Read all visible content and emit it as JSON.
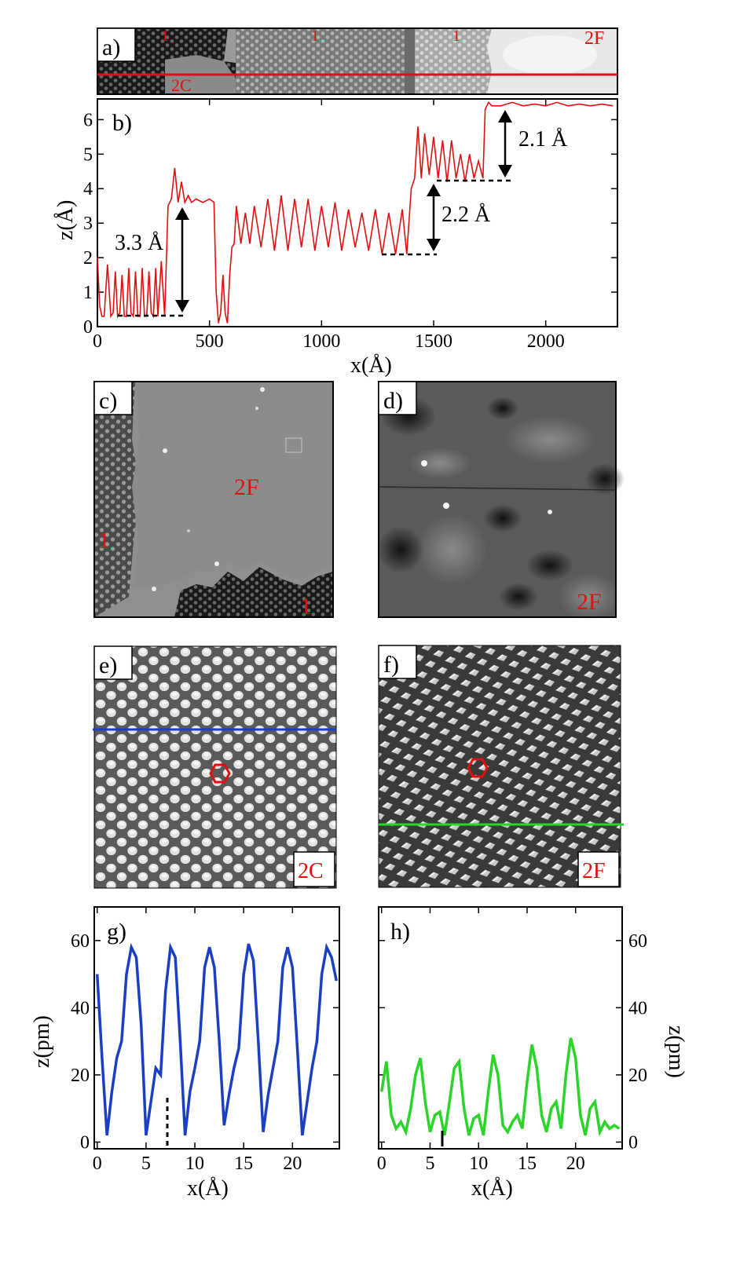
{
  "panels": {
    "a": {
      "label": "a)",
      "regions": [
        "1",
        "1",
        "1",
        "2F",
        "2C"
      ]
    },
    "b": {
      "label": "b)"
    },
    "c": {
      "label": "c)",
      "regions": [
        "2F",
        "1",
        "1"
      ]
    },
    "d": {
      "label": "d)",
      "regions": [
        "2F"
      ]
    },
    "e": {
      "label": "e)",
      "tag": "2C",
      "line_color": "#1a3fc4"
    },
    "f": {
      "label": "f)",
      "tag": "2F",
      "line_color": "#2ad52a"
    },
    "g": {
      "label": "g)"
    },
    "h": {
      "label": "h)"
    }
  },
  "annotations": {
    "step1": "3.3 Å",
    "step2": "2.2 Å",
    "step3": "2.1 Å"
  },
  "colors": {
    "profile_red": "#e01010",
    "profile_blue": "#1a3fc4",
    "profile_green": "#2ad52a"
  },
  "chart_data": [
    {
      "type": "line",
      "panel": "b",
      "xlabel": "x(Å)",
      "ylabel": "z(Å)",
      "xlim": [
        0,
        2320
      ],
      "ylim": [
        0,
        6.6
      ],
      "xticks": [
        0,
        500,
        1000,
        1500,
        2000
      ],
      "yticks": [
        0,
        1,
        2,
        3,
        4,
        5,
        6
      ],
      "series": [
        {
          "color": "#e01010",
          "x": [
            0,
            10,
            20,
            30,
            45,
            60,
            70,
            80,
            90,
            100,
            110,
            120,
            130,
            140,
            150,
            160,
            170,
            180,
            190,
            200,
            210,
            220,
            230,
            240,
            250,
            260,
            270,
            285,
            300,
            315,
            330,
            345,
            360,
            375,
            390,
            405,
            420,
            440,
            470,
            500,
            520,
            530,
            540,
            550,
            560,
            570,
            580,
            590,
            600,
            610,
            620,
            640,
            660,
            680,
            700,
            730,
            760,
            790,
            820,
            850,
            880,
            910,
            940,
            970,
            1000,
            1030,
            1060,
            1090,
            1120,
            1150,
            1180,
            1210,
            1240,
            1270,
            1300,
            1330,
            1360,
            1380,
            1400,
            1415,
            1430,
            1445,
            1460,
            1480,
            1500,
            1520,
            1540,
            1560,
            1580,
            1600,
            1620,
            1640,
            1660,
            1680,
            1700,
            1720,
            1730,
            1745,
            1760,
            1800,
            1850,
            1900,
            1950,
            2000,
            2050,
            2100,
            2150,
            2200,
            2250,
            2300
          ],
          "y": [
            2.0,
            0.6,
            0.3,
            0.3,
            1.8,
            0.3,
            0.4,
            1.6,
            0.3,
            0.4,
            1.5,
            0.3,
            0.3,
            1.7,
            0.4,
            0.3,
            1.6,
            0.3,
            0.3,
            1.7,
            0.3,
            0.3,
            1.6,
            0.4,
            0.3,
            1.7,
            0.3,
            1.9,
            0.3,
            3.5,
            3.7,
            4.6,
            3.6,
            4.2,
            3.6,
            3.8,
            3.6,
            3.7,
            3.6,
            3.7,
            3.6,
            1.0,
            0.1,
            0.4,
            1.5,
            0.4,
            0.1,
            1.5,
            2.3,
            2.4,
            3.5,
            2.4,
            3.3,
            2.4,
            3.5,
            2.3,
            3.7,
            2.2,
            3.8,
            2.2,
            3.7,
            2.3,
            3.7,
            2.2,
            3.5,
            2.3,
            3.6,
            2.2,
            3.4,
            2.3,
            3.3,
            2.2,
            3.4,
            2.1,
            3.3,
            2.1,
            3.4,
            2.1,
            4.0,
            4.3,
            5.8,
            4.3,
            5.6,
            4.4,
            5.5,
            4.3,
            5.4,
            4.2,
            5.4,
            4.3,
            5.0,
            4.2,
            5.0,
            4.3,
            4.8,
            4.3,
            6.3,
            6.5,
            6.4,
            6.4,
            6.5,
            6.4,
            6.45,
            6.4,
            6.5,
            6.4,
            6.45,
            6.4,
            6.45,
            6.4
          ]
        }
      ]
    },
    {
      "type": "line",
      "panel": "g",
      "xlabel": "x(Å)",
      "ylabel": "z(pm)",
      "xlim": [
        -0.3,
        24.8
      ],
      "ylim": [
        -2,
        70
      ],
      "xticks": [
        0,
        5,
        10,
        15,
        20
      ],
      "yticks": [
        0,
        20,
        40,
        60
      ],
      "series": [
        {
          "color": "#1a3fc4",
          "x": [
            0,
            0.5,
            1.0,
            1.5,
            2.0,
            2.5,
            3.0,
            3.5,
            4.0,
            4.5,
            5.0,
            5.5,
            6.0,
            6.5,
            7.0,
            7.5,
            8.0,
            8.5,
            9.0,
            9.5,
            10.0,
            10.5,
            11.0,
            11.5,
            12.0,
            12.5,
            13.0,
            13.5,
            14.0,
            14.5,
            15.0,
            15.5,
            16.0,
            16.5,
            17.0,
            17.5,
            18.0,
            18.5,
            19.0,
            19.5,
            20.0,
            20.5,
            21.0,
            21.5,
            22.0,
            22.5,
            23.0,
            23.5,
            24.0,
            24.5
          ],
          "y": [
            50,
            25,
            2,
            15,
            25,
            30,
            50,
            58,
            55,
            35,
            2,
            12,
            22,
            20,
            45,
            58,
            55,
            30,
            2,
            15,
            22,
            30,
            52,
            58,
            52,
            30,
            5,
            14,
            22,
            28,
            50,
            59,
            54,
            30,
            3,
            14,
            22,
            30,
            52,
            58,
            52,
            28,
            2,
            12,
            22,
            30,
            50,
            58,
            55,
            48
          ]
        }
      ]
    },
    {
      "type": "line",
      "panel": "h",
      "xlabel": "x(Å)",
      "ylabel": "z(pm)",
      "xlim": [
        -0.3,
        24.8
      ],
      "ylim": [
        -2,
        70
      ],
      "xticks": [
        0,
        5,
        10,
        15,
        20
      ],
      "yticks": [
        0,
        20,
        40,
        60
      ],
      "series": [
        {
          "color": "#2ad52a",
          "x": [
            0,
            0.5,
            1.0,
            1.5,
            2.0,
            2.5,
            3.0,
            3.5,
            4.0,
            4.5,
            5.0,
            5.5,
            6.0,
            6.5,
            7.0,
            7.5,
            8.0,
            8.5,
            9.0,
            9.5,
            10.0,
            10.5,
            11.0,
            11.5,
            12.0,
            12.5,
            13.0,
            13.5,
            14.0,
            14.5,
            15.0,
            15.5,
            16.0,
            16.5,
            17.0,
            17.5,
            18.0,
            18.5,
            19.0,
            19.5,
            20.0,
            20.5,
            21.0,
            21.5,
            22.0,
            22.5,
            23.0,
            23.5,
            24.0,
            24.5
          ],
          "y": [
            15,
            24,
            8,
            4,
            6,
            3,
            10,
            20,
            25,
            12,
            3,
            8,
            9,
            2,
            12,
            22,
            24,
            10,
            2,
            7,
            8,
            2,
            15,
            26,
            20,
            5,
            3,
            6,
            8,
            4,
            18,
            29,
            22,
            8,
            3,
            10,
            12,
            4,
            20,
            31,
            25,
            8,
            2,
            10,
            12,
            3,
            6,
            4,
            5,
            4
          ]
        }
      ]
    }
  ]
}
